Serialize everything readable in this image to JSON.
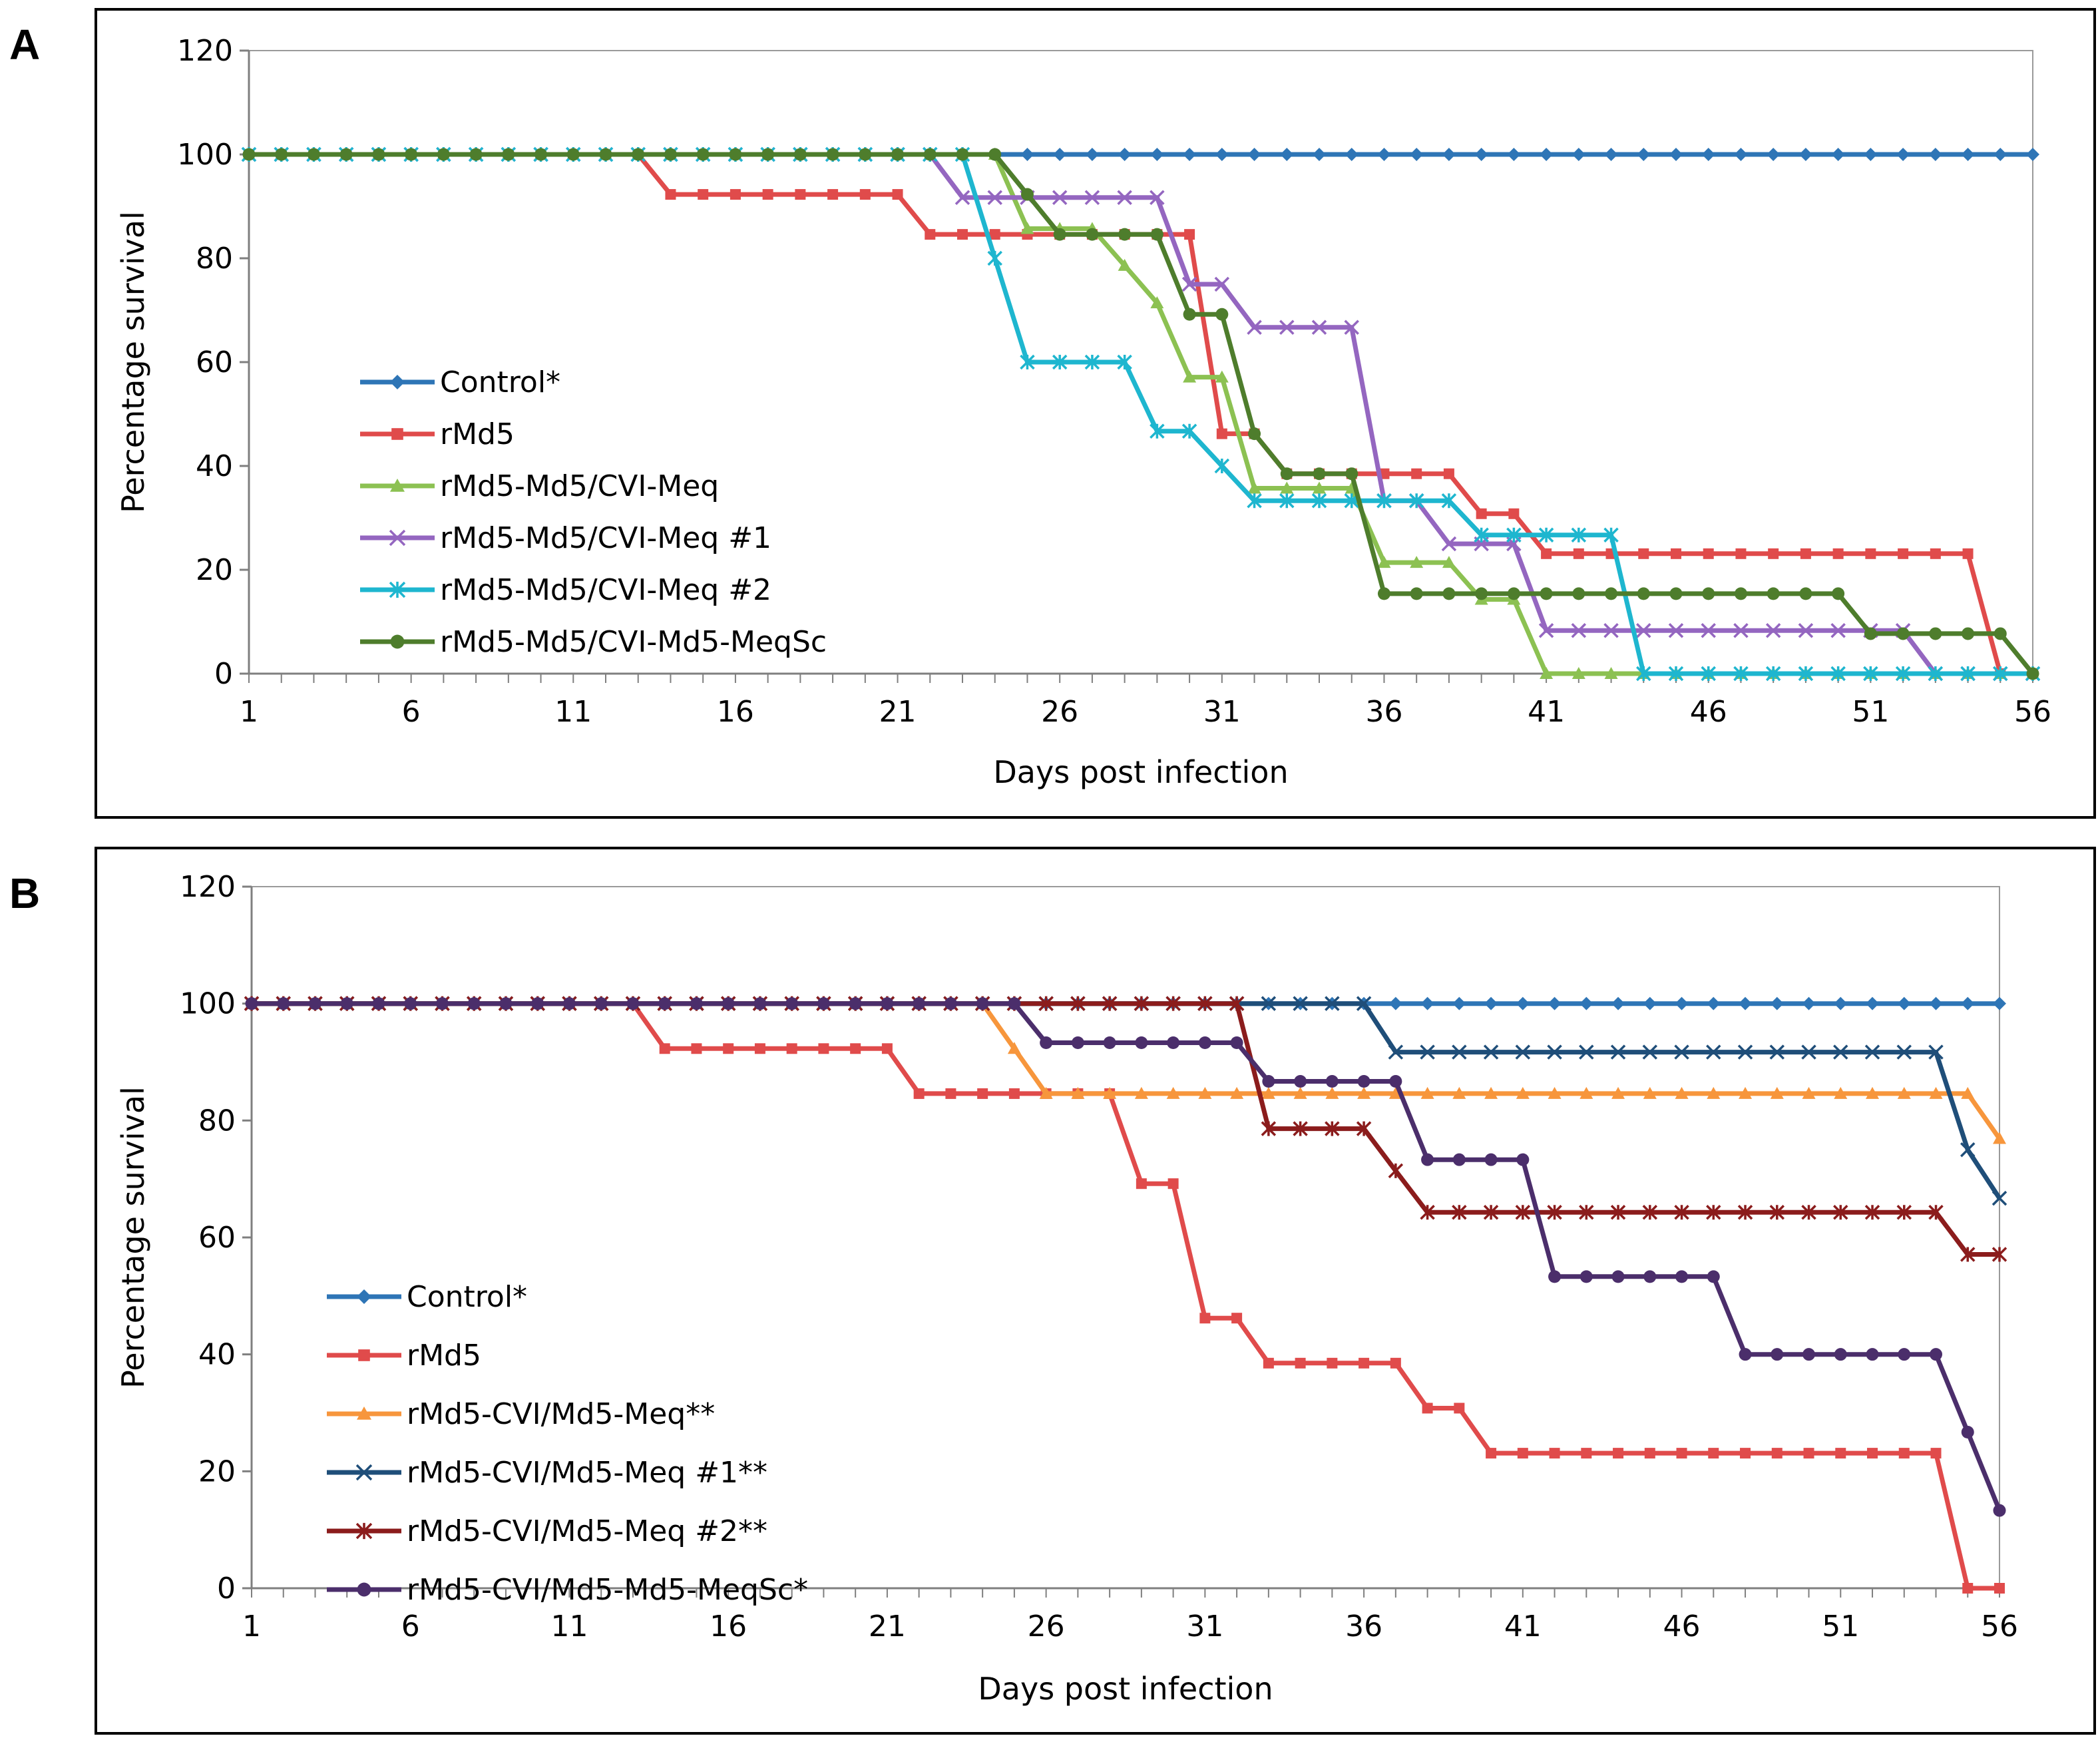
{
  "panels": [
    {
      "id": "A",
      "label": "A"
    },
    {
      "id": "B",
      "label": "B"
    }
  ],
  "chart_data": [
    {
      "panel": "A",
      "type": "line",
      "title": "",
      "xlabel": "Days post infection",
      "ylabel": "Percentage survival",
      "xlim": [
        1,
        56
      ],
      "ylim": [
        0,
        120
      ],
      "yticks": [
        0,
        20,
        40,
        60,
        80,
        100,
        120
      ],
      "xticks": [
        1,
        6,
        11,
        16,
        21,
        26,
        31,
        36,
        41,
        46,
        51,
        56
      ],
      "grid": false,
      "legend_position": "left",
      "series": [
        {
          "name": "Control*",
          "color": "#2E75B6",
          "marker": "diamond",
          "points": [
            [
              1,
              100
            ],
            [
              56,
              100
            ]
          ]
        },
        {
          "name": "rMd5",
          "color": "#E04B4B",
          "marker": "square",
          "points": [
            [
              1,
              100
            ],
            [
              13,
              100
            ],
            [
              14,
              92.3
            ],
            [
              21,
              92.3
            ],
            [
              22,
              84.6
            ],
            [
              30,
              84.6
            ],
            [
              31,
              46.2
            ],
            [
              32,
              46.2
            ],
            [
              33,
              38.5
            ],
            [
              38,
              38.5
            ],
            [
              39,
              30.8
            ],
            [
              40,
              30.8
            ],
            [
              41,
              23.1
            ],
            [
              54,
              23.1
            ],
            [
              55,
              0
            ],
            [
              56,
              0
            ]
          ]
        },
        {
          "name": "rMd5-Md5/CVI-Meq",
          "color": "#8CC152",
          "marker": "triangle",
          "points": [
            [
              1,
              100
            ],
            [
              24,
              100
            ],
            [
              25,
              85.7
            ],
            [
              27,
              85.7
            ],
            [
              28,
              78.6
            ],
            [
              29,
              71.4
            ],
            [
              30,
              57.1
            ],
            [
              31,
              57.1
            ],
            [
              32,
              35.7
            ],
            [
              35,
              35.7
            ],
            [
              36,
              21.4
            ],
            [
              38,
              21.4
            ],
            [
              39,
              14.3
            ],
            [
              40,
              14.3
            ],
            [
              41,
              0
            ],
            [
              56,
              0
            ]
          ]
        },
        {
          "name": "rMd5-Md5/CVI-Meq #1",
          "color": "#9466C0",
          "marker": "x",
          "points": [
            [
              1,
              100
            ],
            [
              22,
              100
            ],
            [
              23,
              91.7
            ],
            [
              29,
              91.7
            ],
            [
              30,
              75
            ],
            [
              31,
              75
            ],
            [
              32,
              66.7
            ],
            [
              35,
              66.7
            ],
            [
              36,
              33.3
            ],
            [
              37,
              33.3
            ],
            [
              38,
              25
            ],
            [
              40,
              25
            ],
            [
              41,
              8.3
            ],
            [
              52,
              8.3
            ],
            [
              53,
              0
            ],
            [
              56,
              0
            ]
          ]
        },
        {
          "name": "rMd5-Md5/CVI-Meq #2",
          "color": "#1EB6CF",
          "marker": "asterisk",
          "points": [
            [
              1,
              100
            ],
            [
              23,
              100
            ],
            [
              24,
              80
            ],
            [
              25,
              60
            ],
            [
              28,
              60
            ],
            [
              29,
              46.7
            ],
            [
              30,
              46.7
            ],
            [
              31,
              40
            ],
            [
              32,
              33.3
            ],
            [
              38,
              33.3
            ],
            [
              39,
              26.7
            ],
            [
              43,
              26.7
            ],
            [
              44,
              0
            ],
            [
              56,
              0
            ]
          ]
        },
        {
          "name": "rMd5-Md5/CVI-Md5-MeqSc",
          "color": "#4E7D2C",
          "marker": "circle",
          "points": [
            [
              1,
              100
            ],
            [
              24,
              100
            ],
            [
              25,
              92.3
            ],
            [
              26,
              84.6
            ],
            [
              29,
              84.6
            ],
            [
              30,
              69.2
            ],
            [
              31,
              69.2
            ],
            [
              32,
              46.2
            ],
            [
              33,
              38.5
            ],
            [
              35,
              38.5
            ],
            [
              36,
              15.4
            ],
            [
              50,
              15.4
            ],
            [
              51,
              7.7
            ],
            [
              55,
              7.7
            ],
            [
              56,
              0
            ]
          ]
        }
      ]
    },
    {
      "panel": "B",
      "type": "line",
      "title": "",
      "xlabel": "Days post infection",
      "ylabel": "Percentage survival",
      "xlim": [
        1,
        56
      ],
      "ylim": [
        0,
        120
      ],
      "yticks": [
        0,
        20,
        40,
        60,
        80,
        100,
        120
      ],
      "xticks": [
        1,
        6,
        11,
        16,
        21,
        26,
        31,
        36,
        41,
        46,
        51,
        56
      ],
      "grid": false,
      "legend_position": "left",
      "series": [
        {
          "name": "Control*",
          "color": "#2E75B6",
          "marker": "diamond",
          "points": [
            [
              1,
              100
            ],
            [
              56,
              100
            ]
          ]
        },
        {
          "name": "rMd5",
          "color": "#E04B4B",
          "marker": "square",
          "points": [
            [
              1,
              100
            ],
            [
              13,
              100
            ],
            [
              14,
              92.3
            ],
            [
              21,
              92.3
            ],
            [
              22,
              84.6
            ],
            [
              28,
              84.6
            ],
            [
              29,
              69.2
            ],
            [
              30,
              69.2
            ],
            [
              31,
              46.2
            ],
            [
              32,
              46.2
            ],
            [
              33,
              38.5
            ],
            [
              37,
              38.5
            ],
            [
              38,
              30.8
            ],
            [
              39,
              30.8
            ],
            [
              40,
              23.1
            ],
            [
              54,
              23.1
            ],
            [
              55,
              0
            ],
            [
              56,
              0
            ]
          ]
        },
        {
          "name": "rMd5-CVI/Md5-Meq**",
          "color": "#F7963C",
          "marker": "triangle",
          "points": [
            [
              1,
              100
            ],
            [
              24,
              100
            ],
            [
              26,
              84.6
            ],
            [
              55,
              84.6
            ],
            [
              56,
              76.9
            ]
          ]
        },
        {
          "name": "rMd5-CVI/Md5-Meq #1**",
          "color": "#1F4E79",
          "marker": "x",
          "points": [
            [
              1,
              100
            ],
            [
              36,
              100
            ],
            [
              37,
              91.7
            ],
            [
              54,
              91.7
            ],
            [
              55,
              75
            ],
            [
              56,
              66.7
            ]
          ]
        },
        {
          "name": "rMd5-CVI/Md5-Meq #2**",
          "color": "#8B1C1C",
          "marker": "asterisk",
          "points": [
            [
              1,
              100
            ],
            [
              32,
              100
            ],
            [
              33,
              78.6
            ],
            [
              36,
              78.6
            ],
            [
              37,
              71.4
            ],
            [
              38,
              64.3
            ],
            [
              54,
              64.3
            ],
            [
              55,
              57.1
            ],
            [
              56,
              57.1
            ]
          ]
        },
        {
          "name": "rMd5-CVI/Md5-Md5-MeqSc*",
          "color": "#4B2E6B",
          "marker": "circle",
          "points": [
            [
              1,
              100
            ],
            [
              25,
              100
            ],
            [
              26,
              93.3
            ],
            [
              32,
              93.3
            ],
            [
              33,
              86.7
            ],
            [
              37,
              86.7
            ],
            [
              38,
              73.3
            ],
            [
              41,
              73.3
            ],
            [
              42,
              53.3
            ],
            [
              47,
              53.3
            ],
            [
              48,
              40
            ],
            [
              54,
              40
            ],
            [
              55,
              26.7
            ],
            [
              56,
              13.3
            ]
          ]
        }
      ]
    }
  ]
}
